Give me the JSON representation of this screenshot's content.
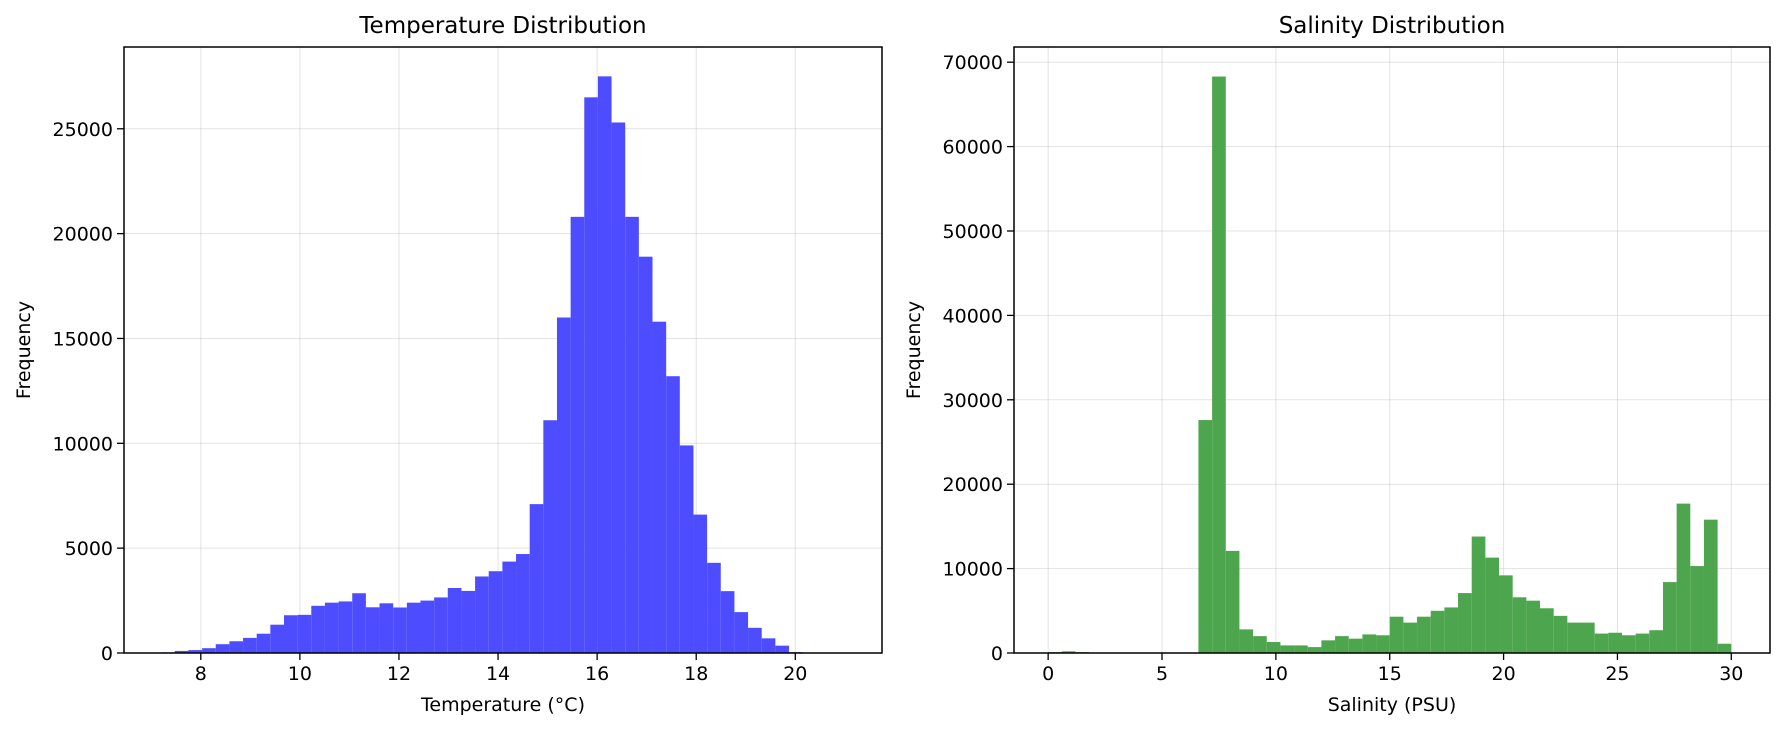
{
  "chart_data": [
    {
      "type": "bar",
      "histogram": true,
      "title": "Temperature Distribution",
      "xlabel": "Temperature (°C)",
      "ylabel": "Frequency",
      "xlim": [
        6.45,
        21.75
      ],
      "ylim": [
        0,
        28900
      ],
      "xticks": [
        8,
        10,
        12,
        14,
        16,
        18,
        20
      ],
      "yticks": [
        0,
        5000,
        10000,
        15000,
        20000,
        25000
      ],
      "grid": true,
      "color": "#4d4dff",
      "bin_start": 7.2,
      "bin_width": 0.2755,
      "values": [
        30,
        100,
        140,
        230,
        420,
        560,
        720,
        920,
        1350,
        1800,
        1820,
        2250,
        2400,
        2460,
        2850,
        2180,
        2370,
        2170,
        2400,
        2500,
        2650,
        3100,
        2960,
        3650,
        3900,
        4360,
        4720,
        7100,
        11100,
        16000,
        20800,
        26500,
        27500,
        25300,
        20800,
        18900,
        15800,
        13200,
        9900,
        6600,
        4300,
        2950,
        1950,
        1200,
        700,
        350,
        40,
        10
      ]
    },
    {
      "type": "bar",
      "histogram": true,
      "title": "Salinity Distribution",
      "xlabel": "Salinity (PSU)",
      "ylabel": "Frequency",
      "xlim": [
        -1.5,
        31.7
      ],
      "ylim": [
        0,
        71800
      ],
      "xticks": [
        0,
        5,
        10,
        15,
        20,
        25,
        30
      ],
      "yticks": [
        0,
        10000,
        20000,
        30000,
        40000,
        50000,
        60000,
        70000
      ],
      "grid": true,
      "color": "#4da64d",
      "bin_start": 0,
      "bin_width": 0.6,
      "values": [
        100,
        200,
        100,
        0,
        0,
        0,
        0,
        0,
        0,
        0,
        0,
        27600,
        68300,
        12100,
        2800,
        2000,
        1300,
        900,
        900,
        700,
        1500,
        2000,
        1700,
        2200,
        2100,
        4300,
        3600,
        4300,
        5000,
        5400,
        7100,
        13800,
        11300,
        9200,
        6600,
        6200,
        5300,
        4400,
        3600,
        3600,
        2300,
        2400,
        2100,
        2300,
        2700,
        8400,
        17700,
        10300,
        15800,
        1100
      ]
    }
  ]
}
